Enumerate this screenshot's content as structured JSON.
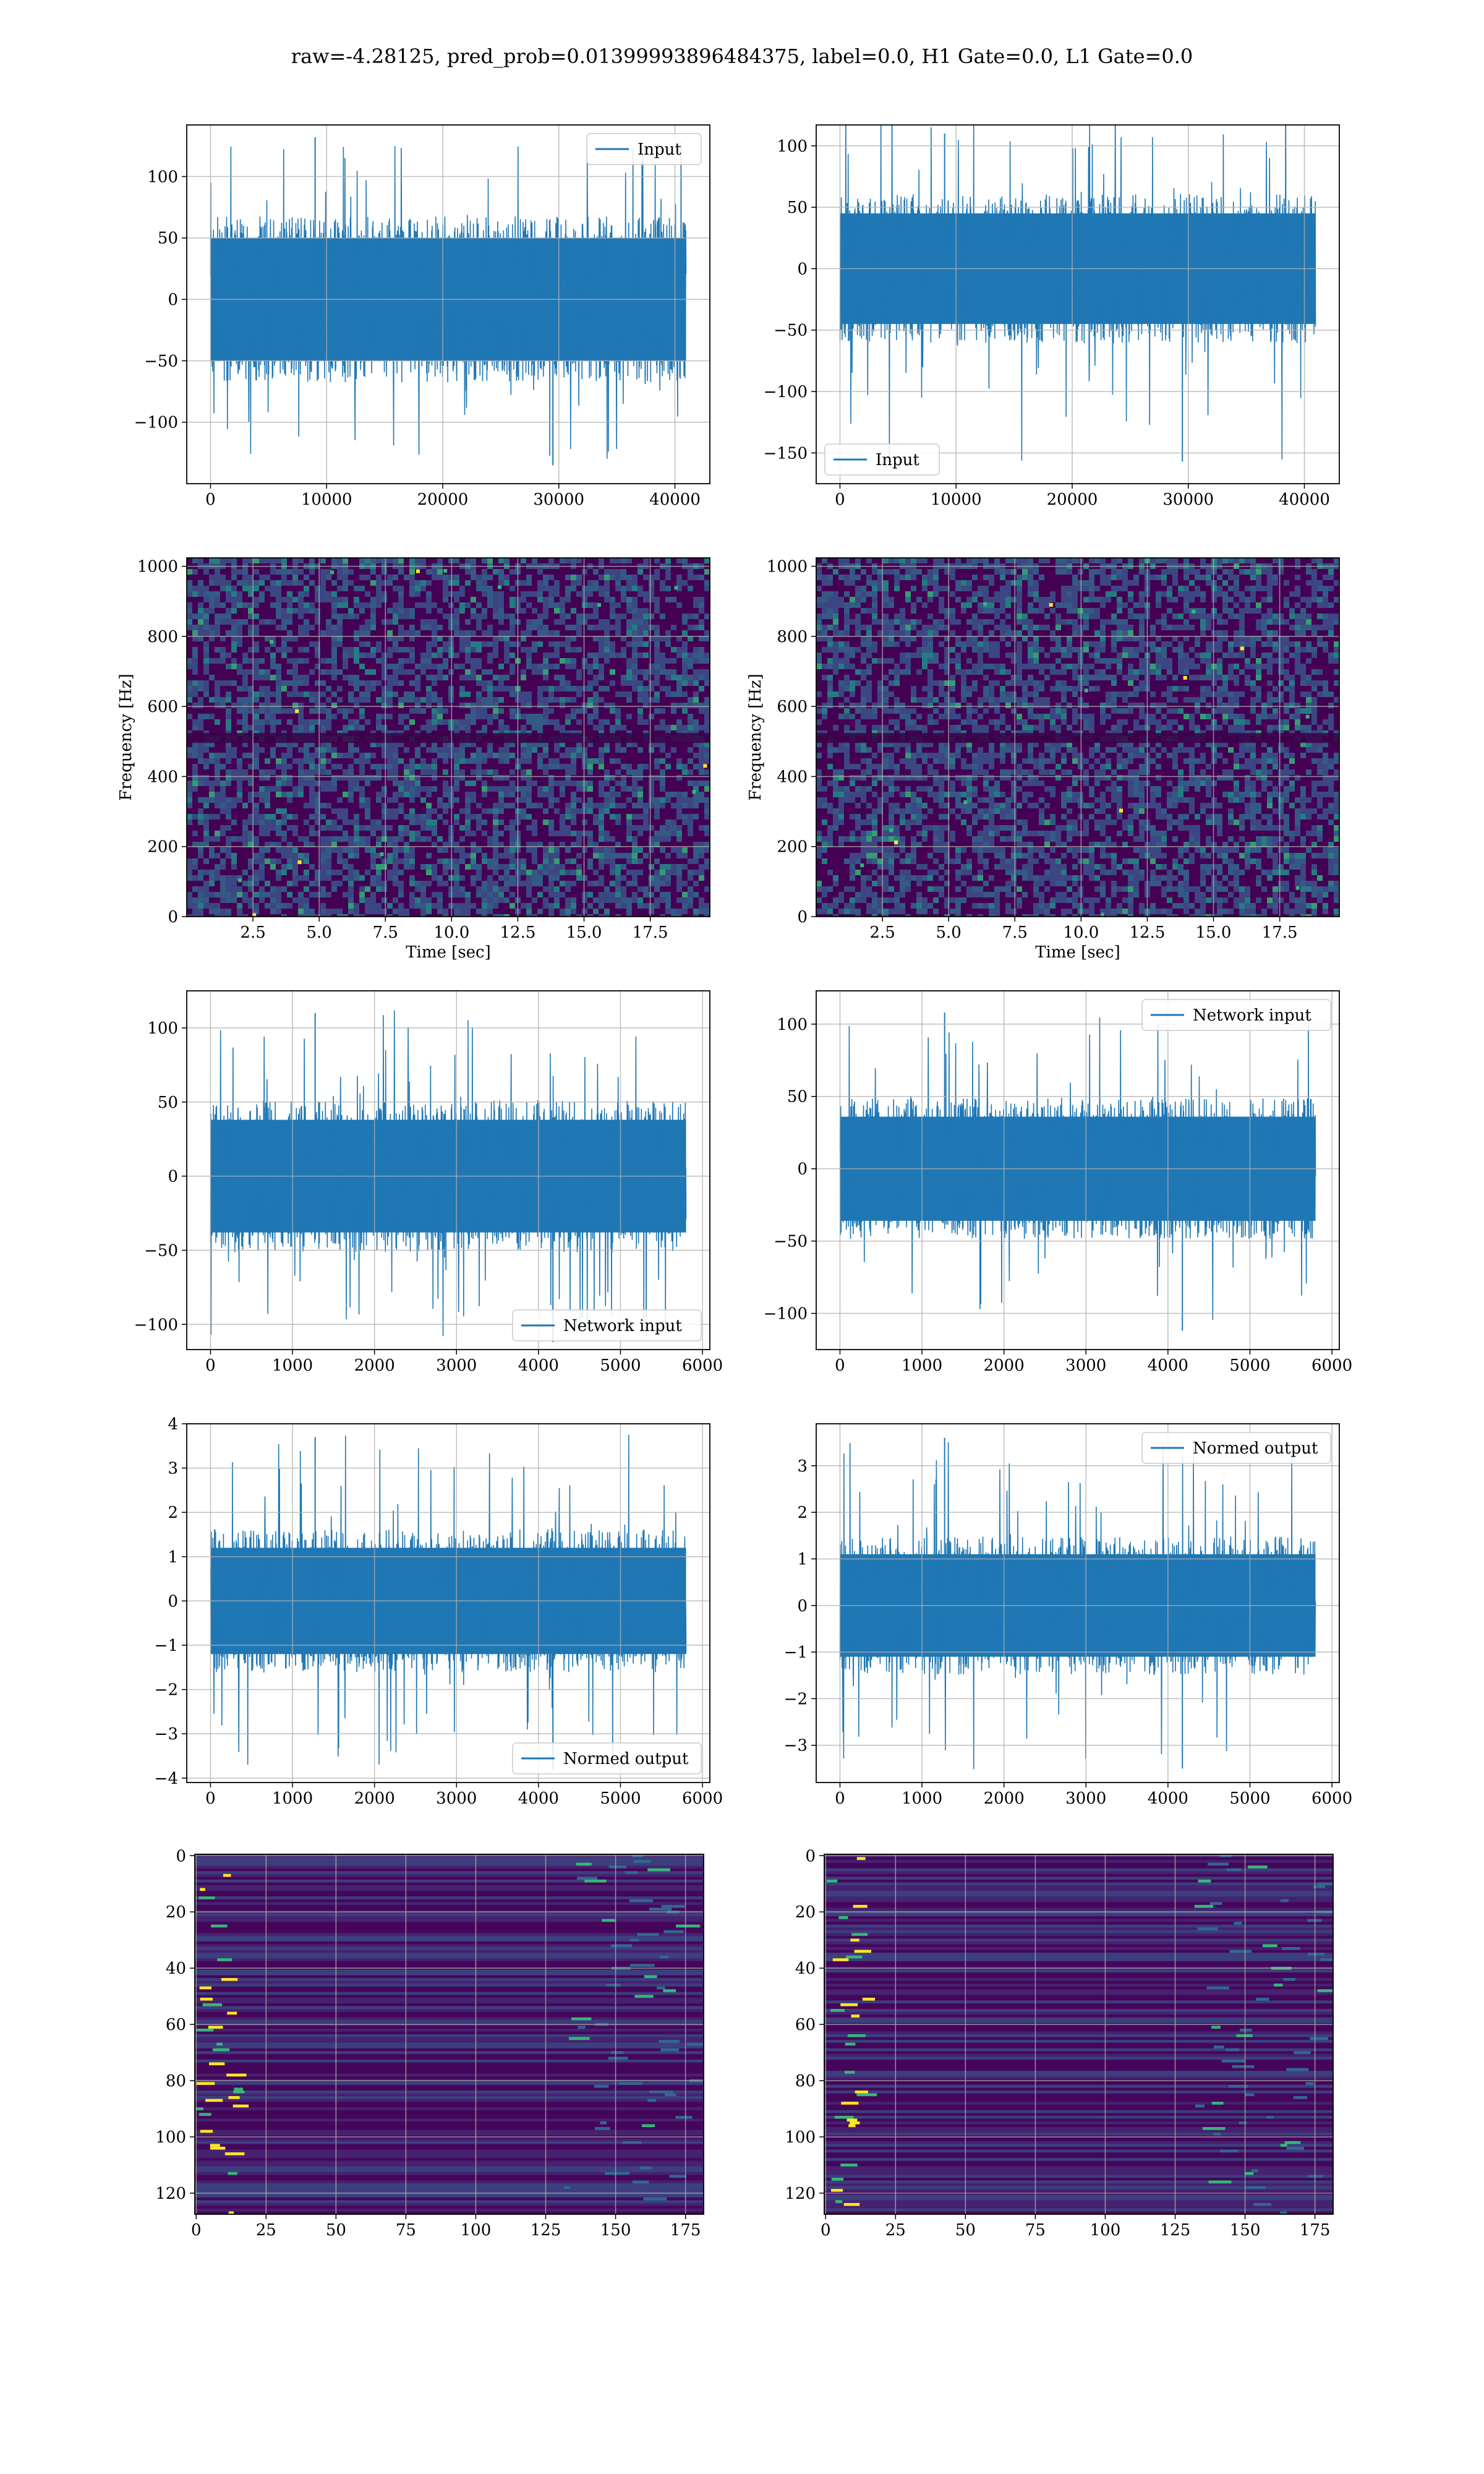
{
  "title": "raw=-4.28125, pred_prob=0.01399993896484375, label=0.0, H1 Gate=0.0, L1 Gate=0.0",
  "colors": {
    "series": "#1f77b4",
    "grid": "#b0b0b0",
    "spec_bg": "#440154",
    "spec_mid": "#31688e",
    "spec_hi": "#35b779",
    "spec_peak": "#fde725"
  },
  "chart_data": [
    {
      "id": "h1-input",
      "type": "line",
      "legend": "Input",
      "legend_loc": "upper right",
      "grid": true,
      "x_range": [
        0,
        40960
      ],
      "xlim": [
        -2048,
        43008
      ],
      "ylim": [
        -150,
        142
      ],
      "xticks": [
        0,
        10000,
        20000,
        30000,
        40000
      ],
      "xtick_labels": [
        "0",
        "10000",
        "20000",
        "30000",
        "40000"
      ],
      "yticks": [
        -100,
        -50,
        0,
        50,
        100
      ],
      "ytick_labels": [
        "−100",
        "−50",
        "0",
        "50",
        "100"
      ],
      "envelope": {
        "body": [
          -50,
          50
        ],
        "peak_max": 132,
        "peak_min": -135
      }
    },
    {
      "id": "l1-input",
      "type": "line",
      "legend": "Input",
      "legend_loc": "lower left",
      "grid": true,
      "x_range": [
        0,
        40960
      ],
      "xlim": [
        -2048,
        43008
      ],
      "ylim": [
        -175,
        117
      ],
      "xticks": [
        0,
        10000,
        20000,
        30000,
        40000
      ],
      "xtick_labels": [
        "0",
        "10000",
        "20000",
        "30000",
        "40000"
      ],
      "yticks": [
        -150,
        -100,
        -50,
        0,
        50,
        100
      ],
      "ytick_labels": [
        "−150",
        "−100",
        "−50",
        "0",
        "50",
        "100"
      ],
      "envelope": {
        "body": [
          -45,
          45
        ],
        "peak_max": 110,
        "peak_min": -157
      }
    },
    {
      "id": "h1-spectrogram",
      "type": "heatmap",
      "grid": true,
      "xlabel": "Time [sec]",
      "ylabel": "Frequency [Hz]",
      "xlim": [
        0,
        19.75
      ],
      "ylim": [
        0,
        1024
      ],
      "xticks": [
        2.5,
        5.0,
        7.5,
        10.0,
        12.5,
        15.0,
        17.5
      ],
      "xtick_labels": [
        "2.5",
        "5.0",
        "7.5",
        "10.0",
        "12.5",
        "15.0",
        "17.5"
      ],
      "yticks": [
        0,
        200,
        400,
        600,
        800,
        1000
      ],
      "ytick_labels": [
        "0",
        "200",
        "400",
        "600",
        "800",
        "1000"
      ],
      "dark_band_hz": 510
    },
    {
      "id": "l1-spectrogram",
      "type": "heatmap",
      "grid": true,
      "xlabel": "Time [sec]",
      "ylabel": "Frequency [Hz]",
      "xlim": [
        0,
        19.75
      ],
      "ylim": [
        0,
        1024
      ],
      "xticks": [
        2.5,
        5.0,
        7.5,
        10.0,
        12.5,
        15.0,
        17.5
      ],
      "xtick_labels": [
        "2.5",
        "5.0",
        "7.5",
        "10.0",
        "12.5",
        "15.0",
        "17.5"
      ],
      "yticks": [
        0,
        200,
        400,
        600,
        800,
        1000
      ],
      "ytick_labels": [
        "0",
        "200",
        "400",
        "600",
        "800",
        "1000"
      ],
      "dark_band_hz": 510
    },
    {
      "id": "h1-network-input",
      "type": "line",
      "legend": "Network input",
      "legend_loc": "lower right",
      "grid": true,
      "x_range": [
        0,
        5800
      ],
      "xlim": [
        -290,
        6090
      ],
      "ylim": [
        -117,
        125
      ],
      "xticks": [
        0,
        1000,
        2000,
        3000,
        4000,
        5000,
        6000
      ],
      "xtick_labels": [
        "0",
        "1000",
        "2000",
        "3000",
        "4000",
        "5000",
        "6000"
      ],
      "yticks": [
        -100,
        -50,
        0,
        50,
        100
      ],
      "ytick_labels": [
        "−100",
        "−50",
        "0",
        "50",
        "100"
      ],
      "envelope": {
        "body": [
          -38,
          38
        ],
        "peak_max": 110,
        "peak_min": -112
      }
    },
    {
      "id": "l1-network-input",
      "type": "line",
      "legend": "Network input",
      "legend_loc": "upper right",
      "grid": true,
      "x_range": [
        0,
        5800
      ],
      "xlim": [
        -290,
        6090
      ],
      "ylim": [
        -125,
        123
      ],
      "xticks": [
        0,
        1000,
        2000,
        3000,
        4000,
        5000,
        6000
      ],
      "xtick_labels": [
        "0",
        "1000",
        "2000",
        "3000",
        "4000",
        "5000",
        "6000"
      ],
      "yticks": [
        -100,
        -50,
        0,
        50,
        100
      ],
      "ytick_labels": [
        "−100",
        "−50",
        "0",
        "50",
        "100"
      ],
      "envelope": {
        "body": [
          -36,
          36
        ],
        "peak_max": 108,
        "peak_min": -112
      }
    },
    {
      "id": "h1-normed-output",
      "type": "line",
      "legend": "Normed output",
      "legend_loc": "lower right",
      "grid": true,
      "x_range": [
        0,
        5800
      ],
      "xlim": [
        -290,
        6090
      ],
      "ylim": [
        -4.1,
        4.0
      ],
      "xticks": [
        0,
        1000,
        2000,
        3000,
        4000,
        5000,
        6000
      ],
      "xtick_labels": [
        "0",
        "1000",
        "2000",
        "3000",
        "4000",
        "5000",
        "6000"
      ],
      "yticks": [
        -4,
        -3,
        -2,
        -1,
        0,
        1,
        2,
        3,
        4
      ],
      "ytick_labels": [
        "−4",
        "−3",
        "−2",
        "−1",
        "0",
        "1",
        "2",
        "3",
        "4"
      ],
      "envelope": {
        "body": [
          -1.2,
          1.2
        ],
        "peak_max": 3.7,
        "peak_min": -3.8
      }
    },
    {
      "id": "l1-normed-output",
      "type": "line",
      "legend": "Normed output",
      "legend_loc": "upper right",
      "grid": true,
      "x_range": [
        0,
        5800
      ],
      "xlim": [
        -290,
        6090
      ],
      "ylim": [
        -3.8,
        3.9
      ],
      "xticks": [
        0,
        1000,
        2000,
        3000,
        4000,
        5000,
        6000
      ],
      "xtick_labels": [
        "0",
        "1000",
        "2000",
        "3000",
        "4000",
        "5000",
        "6000"
      ],
      "yticks": [
        -3,
        -2,
        -1,
        0,
        1,
        2,
        3
      ],
      "ytick_labels": [
        "−3",
        "−2",
        "−1",
        "0",
        "1",
        "2",
        "3"
      ],
      "envelope": {
        "body": [
          -1.1,
          1.1
        ],
        "peak_max": 3.6,
        "peak_min": -3.5
      }
    },
    {
      "id": "h1-feature-map",
      "type": "heatmap",
      "grid": true,
      "y_inverted": true,
      "xlim": [
        -0.5,
        181.5
      ],
      "ylim": [
        127.5,
        -0.5
      ],
      "xticks": [
        0,
        25,
        50,
        75,
        100,
        125,
        150,
        175
      ],
      "xtick_labels": [
        "0",
        "25",
        "50",
        "75",
        "100",
        "125",
        "150",
        "175"
      ],
      "yticks": [
        0,
        20,
        40,
        60,
        80,
        100,
        120
      ],
      "ytick_labels": [
        "0",
        "20",
        "40",
        "60",
        "80",
        "100",
        "120"
      ]
    },
    {
      "id": "l1-feature-map",
      "type": "heatmap",
      "grid": true,
      "y_inverted": true,
      "xlim": [
        -0.5,
        181.5
      ],
      "ylim": [
        127.5,
        -0.5
      ],
      "xticks": [
        0,
        25,
        50,
        75,
        100,
        125,
        150,
        175
      ],
      "xtick_labels": [
        "0",
        "25",
        "50",
        "75",
        "100",
        "125",
        "150",
        "175"
      ],
      "yticks": [
        0,
        20,
        40,
        60,
        80,
        100,
        120
      ],
      "ytick_labels": [
        "0",
        "20",
        "40",
        "60",
        "80",
        "100",
        "120"
      ]
    }
  ]
}
